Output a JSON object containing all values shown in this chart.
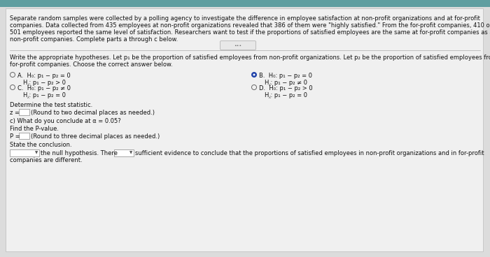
{
  "bg_color": "#dcdcdc",
  "header_color": "#5f9ea0",
  "panel_color": "#f0f0f0",
  "text_color": "#111111",
  "para_text_l1": "Separate random samples were collected by a polling agency to investigate the difference in employee satisfaction at non-profit organizations and at for-profit",
  "para_text_l2": "companies. Data collected from 435 employees at non-profit organizations revealed that 386 of them were \"highly satisfied.\" From the for-profit companies, 410 out of",
  "para_text_l3": "501 employees reported the same level of satisfaction. Researchers want to test if the proportions of satisfied employees are the same at for-profit companies as at",
  "para_text_l4": "non-profit companies. Complete parts a through c below.",
  "hyp_intro_l1": "Write the appropriate hypotheses. Let p₁ be the proportion of satisfied employees from non-profit organizations. Let p₂ be the proportion of satisfied employees from",
  "hyp_intro_l2": "for-profit companies. Choose the correct answer below.",
  "optA_line1": "H₀: p₁ − p₂ = 0",
  "optA_line2": "H⁁: p₁ − p₂ > 0",
  "optB_line1": "H₀: p₁ − p₂ = 0",
  "optB_line2": "H⁁: p₁ − p₂ ≠ 0",
  "optC_line1": "H₀: p₁ − p₂ ≠ 0",
  "optC_line2": "H⁁: p₁ − p₂ = 0",
  "optD_line1": "H₀: p₁ − p₂ > 0",
  "optD_line2": "H⁁: p₁ − p₂ = 0",
  "det_stat": "Determine the test statistic.",
  "c_line": "c) What do you conclude at α = 0.05?",
  "pval_label": "Find the P-value.",
  "state_conc": "State the conclusion.",
  "conc_suffix": "sufficient evidence to conclude that the proportions of satisfied employees in non-profit organizations and in for-profit",
  "conc_line2": "companies are different.",
  "null_hyp_text": "the null hypothesis. There",
  "z_suffix": "(Round to two decimal places as needed.)",
  "p_suffix": "(Round to three decimal places as needed.)"
}
